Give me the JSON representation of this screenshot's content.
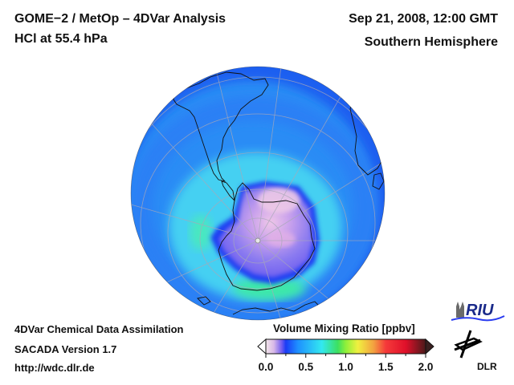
{
  "header": {
    "title": "GOME−2 / MetOp – 4DVar Analysis",
    "subtitle": "HCl at 55.4 hPa",
    "datetime": "Sep 21, 2008, 12:00 GMT",
    "region": "Southern Hemisphere"
  },
  "footer": {
    "line1": "4DVar Chemical Data Assimilation",
    "line2": "SACADA Version 1.7",
    "line3": "http://wdc.dlr.de"
  },
  "logos": {
    "riu": "RIU",
    "dlr": "DLR"
  },
  "colorbar": {
    "title": "Volume Mixing Ratio [ppbv]",
    "min": 0.0,
    "max": 2.0,
    "ticks": [
      "0.0",
      "0.5",
      "1.0",
      "1.5",
      "2.0"
    ],
    "tick_values": [
      0.0,
      0.5,
      1.0,
      1.5,
      2.0
    ],
    "minor_step": 0.25,
    "under_color": "#ffffff",
    "over_color": "#3a2020",
    "stops": [
      {
        "v": 0.0,
        "c": "#f3e6ea"
      },
      {
        "v": 0.1,
        "c": "#d8b8e8"
      },
      {
        "v": 0.2,
        "c": "#6f5cf0"
      },
      {
        "v": 0.25,
        "c": "#1a3cf5"
      },
      {
        "v": 0.4,
        "c": "#1e90ff"
      },
      {
        "v": 0.7,
        "c": "#33e8f0"
      },
      {
        "v": 0.9,
        "c": "#3ce060"
      },
      {
        "v": 1.0,
        "c": "#8ef03a"
      },
      {
        "v": 1.15,
        "c": "#f0f040"
      },
      {
        "v": 1.35,
        "c": "#f3a040"
      },
      {
        "v": 1.5,
        "c": "#f53a3a"
      },
      {
        "v": 1.75,
        "c": "#e0102a"
      },
      {
        "v": 2.0,
        "c": "#4a1a1a"
      }
    ]
  },
  "map": {
    "projection": "orthographic, south polar",
    "colors": {
      "ocean_band_dark": "#1f5ef0",
      "mid_blue": "#2a8cf5",
      "cyan": "#40d8f0",
      "green": "#3de8a0",
      "vortex_violet": "#8c7cf0",
      "vortex_pink": "#e6b4e6",
      "vortex_edge": "#2040f0",
      "coastline": "#101010",
      "gridline": "#a0a0a0"
    }
  }
}
